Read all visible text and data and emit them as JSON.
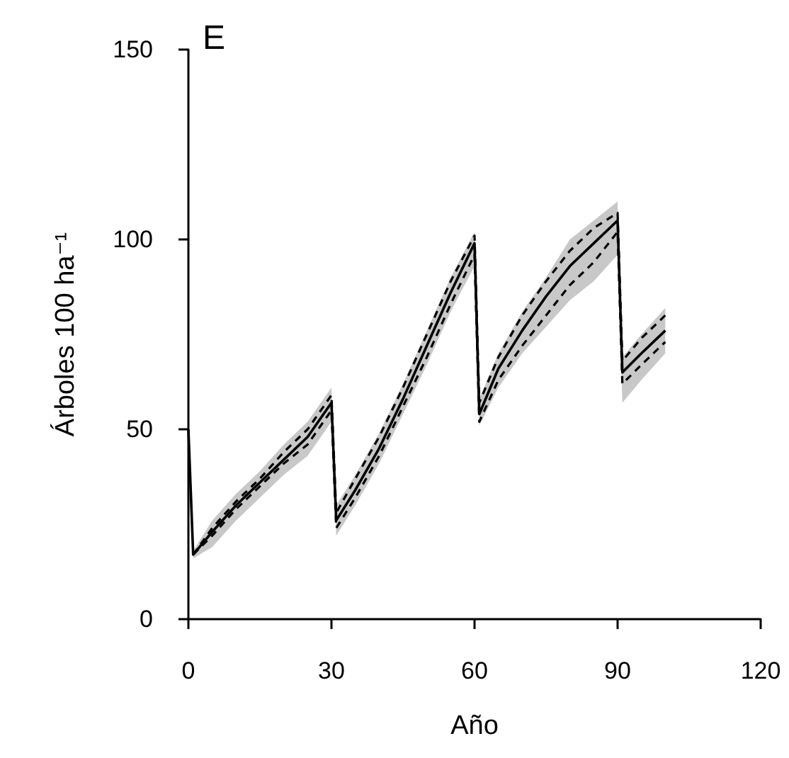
{
  "chart_data": {
    "type": "line",
    "title": "E",
    "xlabel": "Año",
    "ylabel": "Árboles 100 ha⁻¹",
    "xlim": [
      0,
      120
    ],
    "xticks": [
      0,
      30,
      60,
      90,
      120
    ],
    "ylim": [
      0,
      150
    ],
    "yticks": [
      0,
      50,
      100,
      150
    ],
    "grid": false,
    "legend": false,
    "marker": "none",
    "series": [
      {
        "color": "#000000",
        "line_style": "solid",
        "x": [
          0,
          1,
          5,
          10,
          15,
          20,
          25,
          30,
          31,
          35,
          40,
          45,
          50,
          55,
          60,
          61,
          65,
          70,
          75,
          80,
          85,
          90,
          91,
          95,
          100
        ],
        "values": [
          50,
          17,
          23,
          30,
          36,
          42,
          48,
          57,
          26,
          34,
          45,
          58,
          72,
          86,
          99,
          54,
          66,
          76,
          85,
          93,
          99,
          105,
          65,
          70,
          76
        ],
        "lower": [
          50,
          16,
          19,
          26,
          32,
          38,
          43,
          52,
          22,
          30,
          41,
          54,
          67,
          81,
          93,
          51,
          61,
          70,
          77,
          84,
          89,
          96,
          57,
          63,
          70
        ],
        "upper": [
          50,
          18,
          26,
          33,
          39,
          46,
          52,
          61,
          30,
          38,
          49,
          62,
          76,
          90,
          102,
          58,
          70,
          81,
          90,
          100,
          105,
          110,
          69,
          75,
          82
        ]
      },
      {
        "color": "#000000",
        "line_style": "dashed",
        "x": [
          1,
          5,
          10,
          15,
          20,
          25,
          30,
          31,
          35,
          40,
          45,
          50,
          55,
          60,
          61,
          65,
          70,
          75,
          80,
          85,
          90,
          91,
          95,
          100
        ],
        "values": [
          17,
          24,
          31,
          37,
          44,
          50,
          59,
          28,
          37,
          48,
          61,
          75,
          89,
          101,
          57,
          69,
          80,
          89,
          97,
          103,
          107,
          68,
          74,
          80
        ]
      },
      {
        "color": "#000000",
        "line_style": "dashed",
        "x": [
          1,
          5,
          10,
          15,
          20,
          25,
          30,
          31,
          35,
          40,
          45,
          50,
          55,
          60,
          61,
          65,
          70,
          75,
          80,
          85,
          90,
          91,
          95,
          100
        ],
        "values": [
          17,
          22,
          29,
          35,
          41,
          46,
          55,
          24,
          32,
          43,
          56,
          69,
          83,
          96,
          52,
          63,
          72,
          80,
          88,
          94,
          102,
          62,
          67,
          73
        ]
      }
    ]
  }
}
